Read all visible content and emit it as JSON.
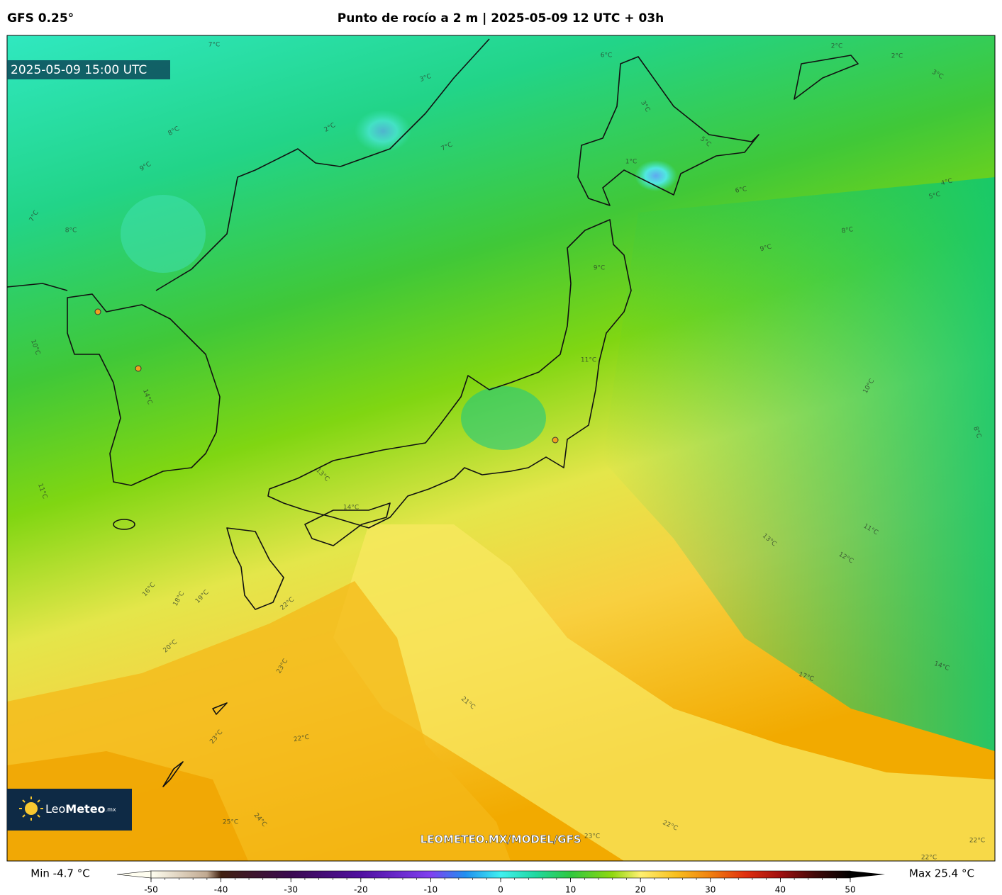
{
  "header": {
    "model": "GFS 0.25°",
    "title": "Punto de rocío a 2 m | 2025-05-09 12 UTC + 03h"
  },
  "map": {
    "valid_time": "2025-05-09 15:00 UTC",
    "watermark": "LEOMETEO.MX/MODEL/GFS",
    "logo": {
      "light": "Leo",
      "bold": "Meteo",
      "suffix": ".mx"
    },
    "contour_labels": [
      "2°C",
      "3°C",
      "7°C",
      "6°C",
      "3°C",
      "1°C",
      "5°C",
      "6°C",
      "4°C",
      "5°C",
      "8°C",
      "9°C",
      "9°C",
      "11°C",
      "10°C",
      "8°C",
      "10°C",
      "14°C",
      "11°C",
      "13°C",
      "14°C",
      "16°C",
      "18°C",
      "19°C",
      "20°C",
      "22°C",
      "23°C",
      "23°C",
      "22°C",
      "21°C",
      "17°C",
      "13°C",
      "11°C",
      "12°C",
      "14°C",
      "25°C",
      "24°C",
      "23°C",
      "22°C",
      "22°C",
      "22°C",
      "2°C",
      "2°C",
      "3°C",
      "7°C",
      "8°C",
      "9°C",
      "8°C",
      "7°C"
    ]
  },
  "colorbar": {
    "min_label": "Min -4.7 °C",
    "max_label": "Max 25.4 °C",
    "lim": [
      -50,
      50
    ],
    "ticks": [
      -50,
      -40,
      -30,
      -20,
      -10,
      0,
      10,
      20,
      30,
      40,
      50
    ]
  }
}
